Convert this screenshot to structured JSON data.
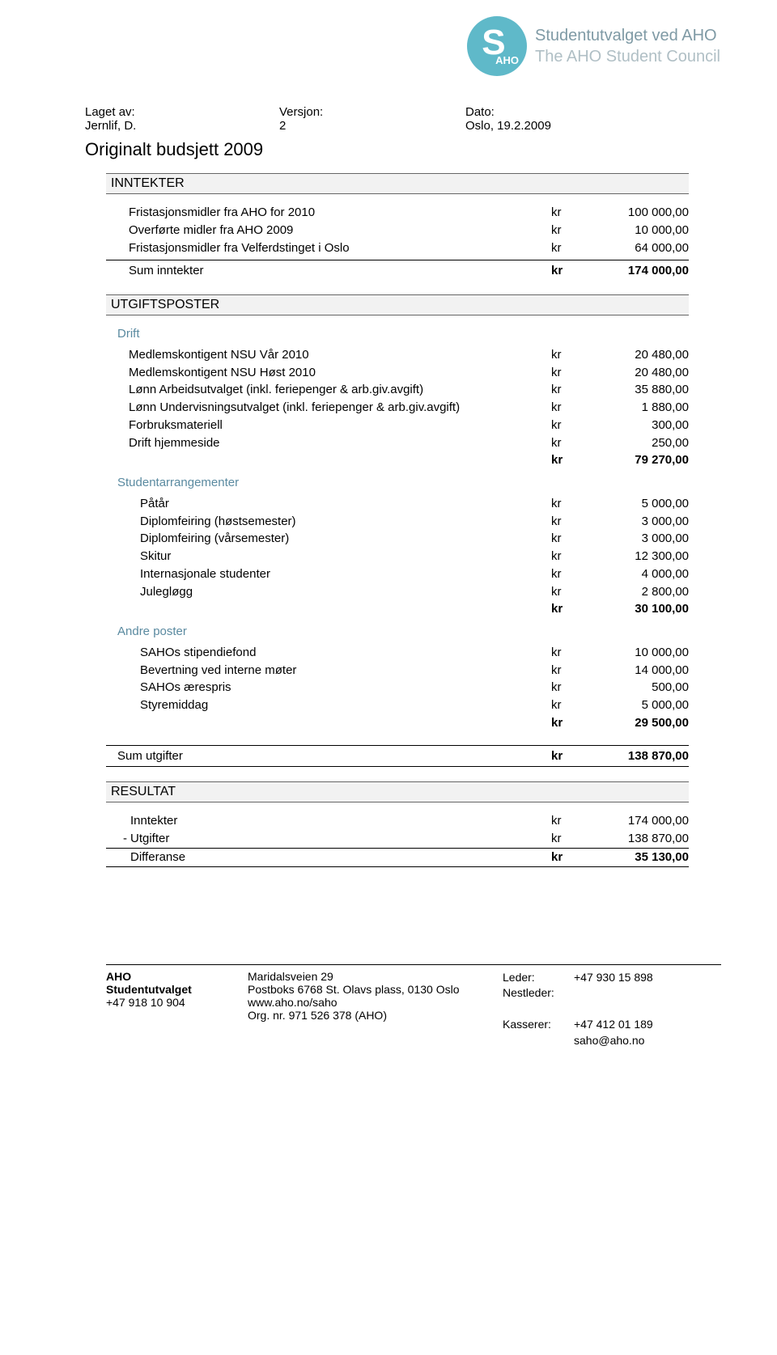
{
  "logo": {
    "s": "S",
    "aho": "AHO",
    "line1": "Studentutvalget ved AHO",
    "line2": "The AHO Student Council",
    "circle_color": "#5fb9c9",
    "text_color_primary": "#7f9aa5",
    "text_color_secondary": "#b0bfc5"
  },
  "meta": {
    "h1": "Laget av:",
    "h2": "Versjon:",
    "h3": "Dato:",
    "v1": "Jernlif, D.",
    "v2": "2",
    "v3": "Oslo, 19.2.2009"
  },
  "title": "Originalt budsjett 2009",
  "inntekter": {
    "header": "INNTEKTER",
    "rows": [
      {
        "label": "Fristasjonsmidler fra AHO for 2010",
        "cur": "kr",
        "amt": "100 000,00"
      },
      {
        "label": "Overførte midler fra AHO 2009",
        "cur": "kr",
        "amt": "10 000,00"
      },
      {
        "label": "Fristasjonsmidler fra Velferdstinget i Oslo",
        "cur": "kr",
        "amt": "64 000,00"
      }
    ],
    "sum": {
      "label": "Sum inntekter",
      "cur": "kr",
      "amt": "174 000,00"
    }
  },
  "utgifter": {
    "header": "UTGIFTSPOSTER",
    "drift": {
      "title": "Drift",
      "rows": [
        {
          "label": "Medlemskontigent NSU Vår 2010",
          "cur": "kr",
          "amt": "20 480,00"
        },
        {
          "label": "Medlemskontigent NSU Høst 2010",
          "cur": "kr",
          "amt": "20 480,00"
        },
        {
          "label": "Lønn Arbeidsutvalget (inkl. feriepenger & arb.giv.avgift)",
          "cur": "kr",
          "amt": "35 880,00"
        },
        {
          "label": "Lønn Undervisningsutvalget (inkl. feriepenger & arb.giv.avgift)",
          "cur": "kr",
          "amt": "1 880,00"
        },
        {
          "label": "Forbruksmateriell",
          "cur": "kr",
          "amt": "300,00"
        },
        {
          "label": "Drift hjemmeside",
          "cur": "kr",
          "amt": "250,00"
        }
      ],
      "subtotal": {
        "cur": "kr",
        "amt": "79 270,00"
      }
    },
    "student": {
      "title": "Studentarrangementer",
      "rows": [
        {
          "label": "Påtår",
          "cur": "kr",
          "amt": "5 000,00"
        },
        {
          "label": "Diplomfeiring (høstsemester)",
          "cur": "kr",
          "amt": "3 000,00"
        },
        {
          "label": "Diplomfeiring (vårsemester)",
          "cur": "kr",
          "amt": "3 000,00"
        },
        {
          "label": "Skitur",
          "cur": "kr",
          "amt": "12 300,00"
        },
        {
          "label": "Internasjonale studenter",
          "cur": "kr",
          "amt": "4 000,00"
        },
        {
          "label": "Julegløgg",
          "cur": "kr",
          "amt": "2 800,00"
        }
      ],
      "subtotal": {
        "cur": "kr",
        "amt": "30 100,00"
      }
    },
    "andre": {
      "title": "Andre poster",
      "rows": [
        {
          "label": "SAHOs stipendiefond",
          "cur": "kr",
          "amt": "10 000,00"
        },
        {
          "label": "Bevertning ved interne møter",
          "cur": "kr",
          "amt": "14 000,00"
        },
        {
          "label": "SAHOs ærespris",
          "cur": "kr",
          "amt": "500,00"
        },
        {
          "label": "Styremiddag",
          "cur": "kr",
          "amt": "5 000,00"
        }
      ],
      "subtotal": {
        "cur": "kr",
        "amt": "29 500,00"
      }
    },
    "sum": {
      "label": "Sum utgifter",
      "cur": "kr",
      "amt": "138 870,00"
    }
  },
  "resultat": {
    "header": "RESULTAT",
    "rows": [
      {
        "prefix": "",
        "label": "Inntekter",
        "cur": "kr",
        "amt": "174 000,00"
      },
      {
        "prefix": "-",
        "label": "Utgifter",
        "cur": "kr",
        "amt": "138 870,00"
      }
    ],
    "diff": {
      "prefix": "",
      "label": "Differanse",
      "cur": "kr",
      "amt": "35 130,00"
    }
  },
  "footer": {
    "col1": {
      "l1": "AHO",
      "l2": "Studentutvalget",
      "l3": "+47 918 10 904"
    },
    "col2": {
      "l1": "Maridalsveien 29",
      "l2": "Postboks 6768 St. Olavs plass, 0130 Oslo",
      "l3": "",
      "l4": "www.aho.no/saho",
      "l5": "Org. nr. 971 526 378 (AHO)"
    },
    "col3": {
      "r1a": "Leder:",
      "r1b": "+47 930 15 898",
      "r2a": "Nestleder:",
      "r2b": "",
      "r3a": "",
      "r3b": "",
      "r4a": "Kasserer:",
      "r4b": "+47 412 01 189",
      "r5a": "",
      "r5b": "saho@aho.no"
    }
  }
}
